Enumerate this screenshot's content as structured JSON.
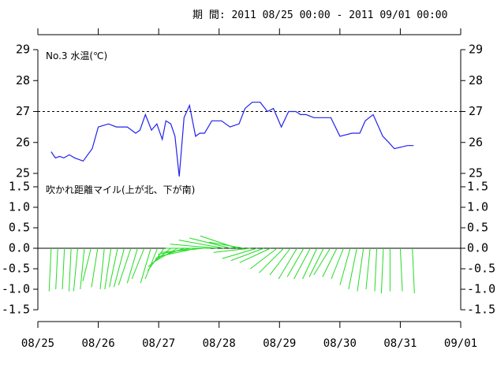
{
  "header": {
    "period_label": "期 間:",
    "period_range": "2011 08/25 00:00 - 2011 09/01 00:00"
  },
  "colors": {
    "temperature": "#2222ee",
    "wind": "#22dd22",
    "axis": "#000000"
  },
  "chart_data": [
    {
      "type": "line",
      "title": "No.3 水温(℃)",
      "x_unit": "days since 08/25 00:00",
      "ylim": [
        25,
        29
      ],
      "yticks": [
        "25",
        "26",
        "27",
        "28",
        "29"
      ],
      "reference_line": 27,
      "series": [
        {
          "name": "水温",
          "x": [
            0.22,
            0.29,
            0.36,
            0.43,
            0.52,
            0.61,
            0.75,
            0.9,
            1.0,
            1.17,
            1.3,
            1.48,
            1.62,
            1.69,
            1.78,
            1.88,
            1.97,
            2.06,
            2.12,
            2.2,
            2.27,
            2.34,
            2.42,
            2.51,
            2.61,
            2.68,
            2.76,
            2.88,
            3.04,
            3.18,
            3.33,
            3.43,
            3.55,
            3.68,
            3.8,
            3.9,
            4.03,
            4.15,
            4.27,
            4.35,
            4.44,
            4.57,
            4.72,
            4.85,
            5.0,
            5.2,
            5.33,
            5.42,
            5.55,
            5.71,
            5.81,
            5.9,
            6.12,
            6.22
          ],
          "values": [
            25.7,
            25.5,
            25.55,
            25.5,
            25.6,
            25.5,
            25.4,
            25.8,
            26.5,
            26.6,
            26.5,
            26.5,
            26.3,
            26.4,
            26.9,
            26.4,
            26.6,
            26.1,
            26.7,
            26.6,
            26.2,
            24.9,
            26.8,
            27.2,
            26.2,
            26.3,
            26.3,
            26.7,
            26.7,
            26.5,
            26.6,
            27.1,
            27.3,
            27.3,
            27.0,
            27.1,
            26.5,
            27.0,
            27.0,
            26.9,
            26.9,
            26.8,
            26.8,
            26.8,
            26.2,
            26.3,
            26.3,
            26.7,
            26.9,
            26.2,
            26.0,
            25.8,
            25.9,
            25.9
          ]
        }
      ]
    },
    {
      "type": "wind_vectors",
      "title": "吹かれ距離マイル(上が北、下が南)",
      "x_unit": "days since 08/25 00:00",
      "ylim": [
        -1.5,
        1.5
      ],
      "yticks": [
        "-1.5",
        "-1.0",
        "-0.5",
        "0.0",
        "0.5",
        "1.0",
        "1.5"
      ],
      "vectors": [
        {
          "x": 0.22,
          "dx": -0.05,
          "dy": -1.05
        },
        {
          "x": 0.33,
          "dx": -0.05,
          "dy": -1.0
        },
        {
          "x": 0.44,
          "dx": -0.05,
          "dy": -1.0
        },
        {
          "x": 0.55,
          "dx": -0.05,
          "dy": -1.05
        },
        {
          "x": 0.66,
          "dx": -0.1,
          "dy": -1.05
        },
        {
          "x": 0.77,
          "dx": -0.1,
          "dy": -1.0
        },
        {
          "x": 0.88,
          "dx": -0.2,
          "dy": -0.8
        },
        {
          "x": 0.99,
          "dx": -0.15,
          "dy": -0.95
        },
        {
          "x": 1.1,
          "dx": -0.1,
          "dy": -1.0
        },
        {
          "x": 1.21,
          "dx": -0.15,
          "dy": -1.0
        },
        {
          "x": 1.32,
          "dx": -0.2,
          "dy": -0.95
        },
        {
          "x": 1.43,
          "dx": -0.25,
          "dy": -0.95
        },
        {
          "x": 1.54,
          "dx": -0.3,
          "dy": -0.9
        },
        {
          "x": 1.65,
          "dx": -0.25,
          "dy": -0.85
        },
        {
          "x": 1.76,
          "dx": -0.3,
          "dy": -0.75
        },
        {
          "x": 1.87,
          "dx": -0.25,
          "dy": -0.85
        },
        {
          "x": 1.98,
          "dx": -0.3,
          "dy": -0.75
        },
        {
          "x": 2.09,
          "dx": -0.4,
          "dy": -0.55
        },
        {
          "x": 2.2,
          "dx": -0.55,
          "dy": -0.45
        },
        {
          "x": 2.31,
          "dx": -0.6,
          "dy": -0.35
        },
        {
          "x": 2.42,
          "dx": -0.7,
          "dy": -0.25
        },
        {
          "x": 2.53,
          "dx": -0.8,
          "dy": -0.15
        },
        {
          "x": 2.64,
          "dx": -0.95,
          "dy": -0.2
        },
        {
          "x": 2.75,
          "dx": -1.05,
          "dy": -0.1
        },
        {
          "x": 2.86,
          "dx": -1.1,
          "dy": 0.0
        },
        {
          "x": 2.97,
          "dx": -1.15,
          "dy": 0.1
        },
        {
          "x": 3.08,
          "dx": -1.1,
          "dy": 0.2
        },
        {
          "x": 3.19,
          "dx": -1.0,
          "dy": 0.25
        },
        {
          "x": 3.3,
          "dx": -0.9,
          "dy": 0.3
        },
        {
          "x": 3.41,
          "dx": -0.85,
          "dy": 0.15
        },
        {
          "x": 3.52,
          "dx": -0.9,
          "dy": -0.1
        },
        {
          "x": 3.63,
          "dx": -0.85,
          "dy": -0.25
        },
        {
          "x": 3.74,
          "dx": -0.8,
          "dy": -0.3
        },
        {
          "x": 3.85,
          "dx": -0.75,
          "dy": -0.35
        },
        {
          "x": 3.96,
          "dx": -0.65,
          "dy": -0.5
        },
        {
          "x": 4.07,
          "dx": -0.6,
          "dy": -0.6
        },
        {
          "x": 4.18,
          "dx": -0.5,
          "dy": -0.65
        },
        {
          "x": 4.29,
          "dx": -0.45,
          "dy": -0.75
        },
        {
          "x": 4.4,
          "dx": -0.4,
          "dy": -0.7
        },
        {
          "x": 4.51,
          "dx": -0.4,
          "dy": -0.75
        },
        {
          "x": 4.62,
          "dx": -0.35,
          "dy": -0.75
        },
        {
          "x": 4.73,
          "dx": -0.35,
          "dy": -0.7
        },
        {
          "x": 4.84,
          "dx": -0.4,
          "dy": -0.65
        },
        {
          "x": 4.95,
          "dx": -0.35,
          "dy": -0.7
        },
        {
          "x": 5.06,
          "dx": -0.3,
          "dy": -0.75
        },
        {
          "x": 5.17,
          "dx": -0.25,
          "dy": -0.9
        },
        {
          "x": 5.28,
          "dx": -0.2,
          "dy": -1.0
        },
        {
          "x": 5.39,
          "dx": -0.15,
          "dy": -1.05
        },
        {
          "x": 5.5,
          "dx": -0.1,
          "dy": -1.0
        },
        {
          "x": 5.61,
          "dx": -0.05,
          "dy": -1.05
        },
        {
          "x": 5.72,
          "dx": -0.05,
          "dy": -1.1
        },
        {
          "x": 5.83,
          "dx": 0.0,
          "dy": -1.05
        },
        {
          "x": 6.0,
          "dx": 0.05,
          "dy": -1.05
        },
        {
          "x": 6.2,
          "dx": 0.05,
          "dy": -1.1
        }
      ]
    }
  ],
  "x_axis": {
    "tick_labels": [
      "08/25",
      "08/26",
      "08/27",
      "08/28",
      "08/29",
      "08/30",
      "08/31",
      "09/01"
    ]
  }
}
